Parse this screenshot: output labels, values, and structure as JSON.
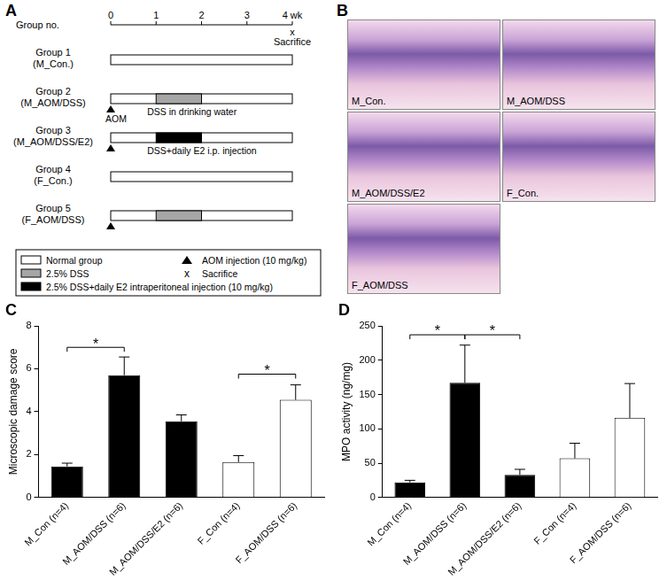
{
  "diagram": {
    "letter": "A",
    "axis_label": "Group no.",
    "ticks": [
      0,
      1,
      2,
      3,
      4
    ],
    "unit": "wk",
    "sacrifice": {
      "week": 4,
      "symbol": "x",
      "label": "Sacrifice"
    },
    "groups": [
      {
        "name": "Group 1",
        "label": "(M_Con.)",
        "aom": null,
        "treatment": null
      },
      {
        "name": "Group 2",
        "label": "(M_AOM/DSS)",
        "aom": "AOM",
        "treatment": {
          "kind": "dss",
          "start": 1,
          "end": 2,
          "label": "DSS in drinking water"
        }
      },
      {
        "name": "Group 3",
        "label": "(M_AOM/DSS/E2)",
        "aom": "",
        "treatment": {
          "kind": "dss_e2",
          "start": 1,
          "end": 2,
          "label": "DSS+daily E2 i.p. injection"
        }
      },
      {
        "name": "Group 4",
        "label": "(F_Con.)",
        "aom": null,
        "treatment": null
      },
      {
        "name": "Group 5",
        "label": "(F_AOM/DSS)",
        "aom": "",
        "treatment": {
          "kind": "dss",
          "start": 1,
          "end": 2,
          "label": null
        }
      }
    ],
    "legend": [
      {
        "kind": "normal",
        "color": "#ffffff",
        "label": "Normal group"
      },
      {
        "kind": "dss",
        "color": "#a6a6a6",
        "label": "2.5% DSS"
      },
      {
        "kind": "dss_e2",
        "color": "#000000",
        "label": "2.5% DSS+daily E2 intraperitoneal injection (10 mg/kg)"
      },
      {
        "kind": "aom",
        "label": "AOM injection (10 mg/kg)"
      },
      {
        "kind": "sacrifice",
        "symbol": "x",
        "label": "Sacrifice"
      }
    ]
  },
  "images": {
    "letter": "B",
    "labels": [
      "M_Con.",
      "M_AOM/DSS",
      "M_AOM/DSS/E2",
      "F_Con.",
      "F_AOM/DSS"
    ]
  },
  "chart_data": [
    {
      "type": "bar",
      "title": "C",
      "y_label": "Microscopic damage score",
      "categories": [
        "M_Con (n=4)",
        "M_AOM/DSS (n=6)",
        "M_AOM/DSS/E2 (n=6)",
        "F_Con (n=4)",
        "F_AOM/DSS (n=6)"
      ],
      "values": [
        1.45,
        5.7,
        3.55,
        1.65,
        4.55
      ],
      "errors": [
        0.15,
        0.85,
        0.3,
        0.3,
        0.7
      ],
      "colors": [
        "#000000",
        "#000000",
        "#000000",
        "#ffffff",
        "#ffffff"
      ],
      "ylim": [
        0,
        8
      ],
      "yticks": [
        0,
        2,
        4,
        6,
        8
      ],
      "grid": false,
      "significance": [
        {
          "from": 0,
          "to": 1,
          "y": 7.0,
          "label": "*"
        },
        {
          "from": 3,
          "to": 4,
          "y": 5.75,
          "label": "*"
        }
      ]
    },
    {
      "type": "bar",
      "title": "D",
      "y_label": "MPO activity (ng/mg)",
      "categories": [
        "M_Con (n=4)",
        "M_AOM/DSS (n=6)",
        "M_AOM/DSS/E2 (n=6)",
        "F_Con (n=4)",
        "F_AOM/DSS (n=6)"
      ],
      "values": [
        22,
        167,
        33,
        57,
        116
      ],
      "errors": [
        3,
        55,
        8,
        22,
        50
      ],
      "colors": [
        "#000000",
        "#000000",
        "#000000",
        "#ffffff",
        "#ffffff"
      ],
      "ylim": [
        0,
        250
      ],
      "yticks": [
        0,
        50,
        100,
        150,
        200,
        250
      ],
      "grid": false,
      "significance": [
        {
          "from": 0,
          "to": 1,
          "y": 237,
          "label": "*"
        },
        {
          "from": 1,
          "to": 2,
          "y": 237,
          "label": "*"
        }
      ]
    }
  ]
}
